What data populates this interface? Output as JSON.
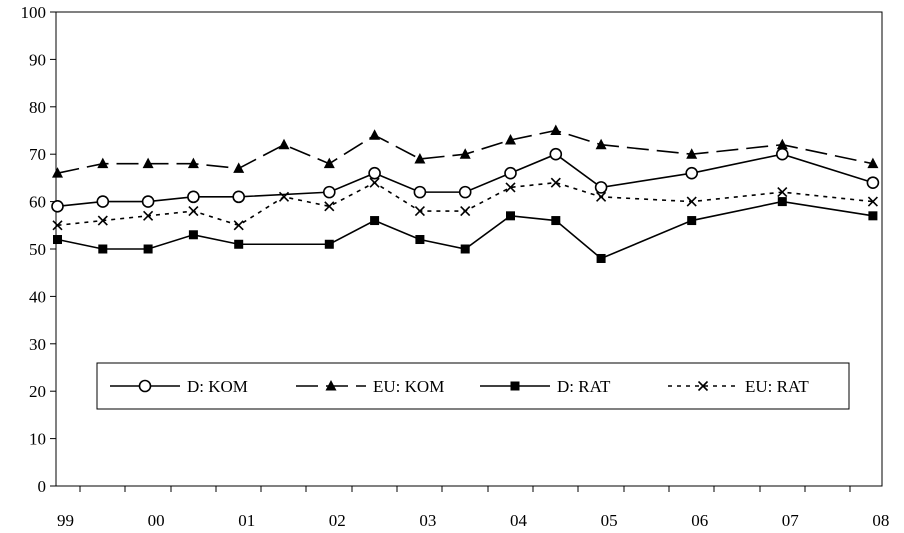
{
  "chart_data": {
    "type": "line",
    "title": "",
    "xlabel": "",
    "ylabel": "",
    "ylim": [
      0,
      100
    ],
    "yticks": [
      0,
      10,
      20,
      30,
      40,
      50,
      60,
      70,
      80,
      90,
      100
    ],
    "xlim": [
      0,
      20
    ],
    "xticks": [
      {
        "label": "99",
        "x": 0
      },
      {
        "label": "00",
        "x": 2
      },
      {
        "label": "01",
        "x": 4
      },
      {
        "label": "02",
        "x": 6
      },
      {
        "label": "03",
        "x": 8
      },
      {
        "label": "04",
        "x": 10
      },
      {
        "label": "05",
        "x": 12
      },
      {
        "label": "06",
        "x": 14
      },
      {
        "label": "07",
        "x": 16
      },
      {
        "label": "08",
        "x": 18
      }
    ],
    "x": [
      0,
      1,
      2,
      3,
      4,
      5,
      6,
      7,
      8,
      9,
      10,
      11,
      12,
      13,
      14,
      15,
      16
    ],
    "series": [
      {
        "name": "D: KOM",
        "color": "#000000",
        "dash": "solid",
        "marker": "open-circle",
        "x": [
          0,
          1,
          2,
          3,
          4,
          6,
          7,
          8,
          9,
          10,
          11,
          12,
          14,
          16,
          18
        ],
        "values": [
          59,
          60,
          60,
          61,
          61,
          62,
          66,
          62,
          62,
          66,
          70,
          63,
          66,
          70,
          64
        ]
      },
      {
        "name": "EU: KOM",
        "color": "#000000",
        "dash": "long-dash",
        "marker": "filled-triangle",
        "x": [
          0,
          1,
          2,
          3,
          4,
          5,
          6,
          7,
          8,
          9,
          10,
          11,
          12,
          14,
          16,
          18
        ],
        "values": [
          66,
          68,
          68,
          68,
          67,
          72,
          68,
          74,
          69,
          70,
          73,
          75,
          72,
          70,
          72,
          68
        ]
      },
      {
        "name": "D: RAT",
        "color": "#000000",
        "dash": "solid",
        "marker": "filled-square",
        "x": [
          0,
          1,
          2,
          3,
          4,
          6,
          7,
          8,
          9,
          10,
          11,
          12,
          14,
          16,
          18
        ],
        "values": [
          52,
          50,
          50,
          53,
          51,
          51,
          56,
          52,
          50,
          57,
          56,
          48,
          56,
          60,
          57
        ]
      },
      {
        "name": "EU: RAT",
        "color": "#000000",
        "dash": "dotted",
        "marker": "x",
        "x": [
          0,
          1,
          2,
          3,
          4,
          5,
          6,
          7,
          8,
          9,
          10,
          11,
          12,
          14,
          16,
          18
        ],
        "values": [
          55,
          56,
          57,
          58,
          55,
          61,
          59,
          64,
          58,
          58,
          63,
          64,
          61,
          60,
          62,
          60
        ]
      }
    ],
    "legend": {
      "placement": "inside-lower",
      "entries": [
        "D: KOM",
        "EU: KOM",
        "D: RAT",
        "EU: RAT"
      ]
    },
    "grid": false
  }
}
